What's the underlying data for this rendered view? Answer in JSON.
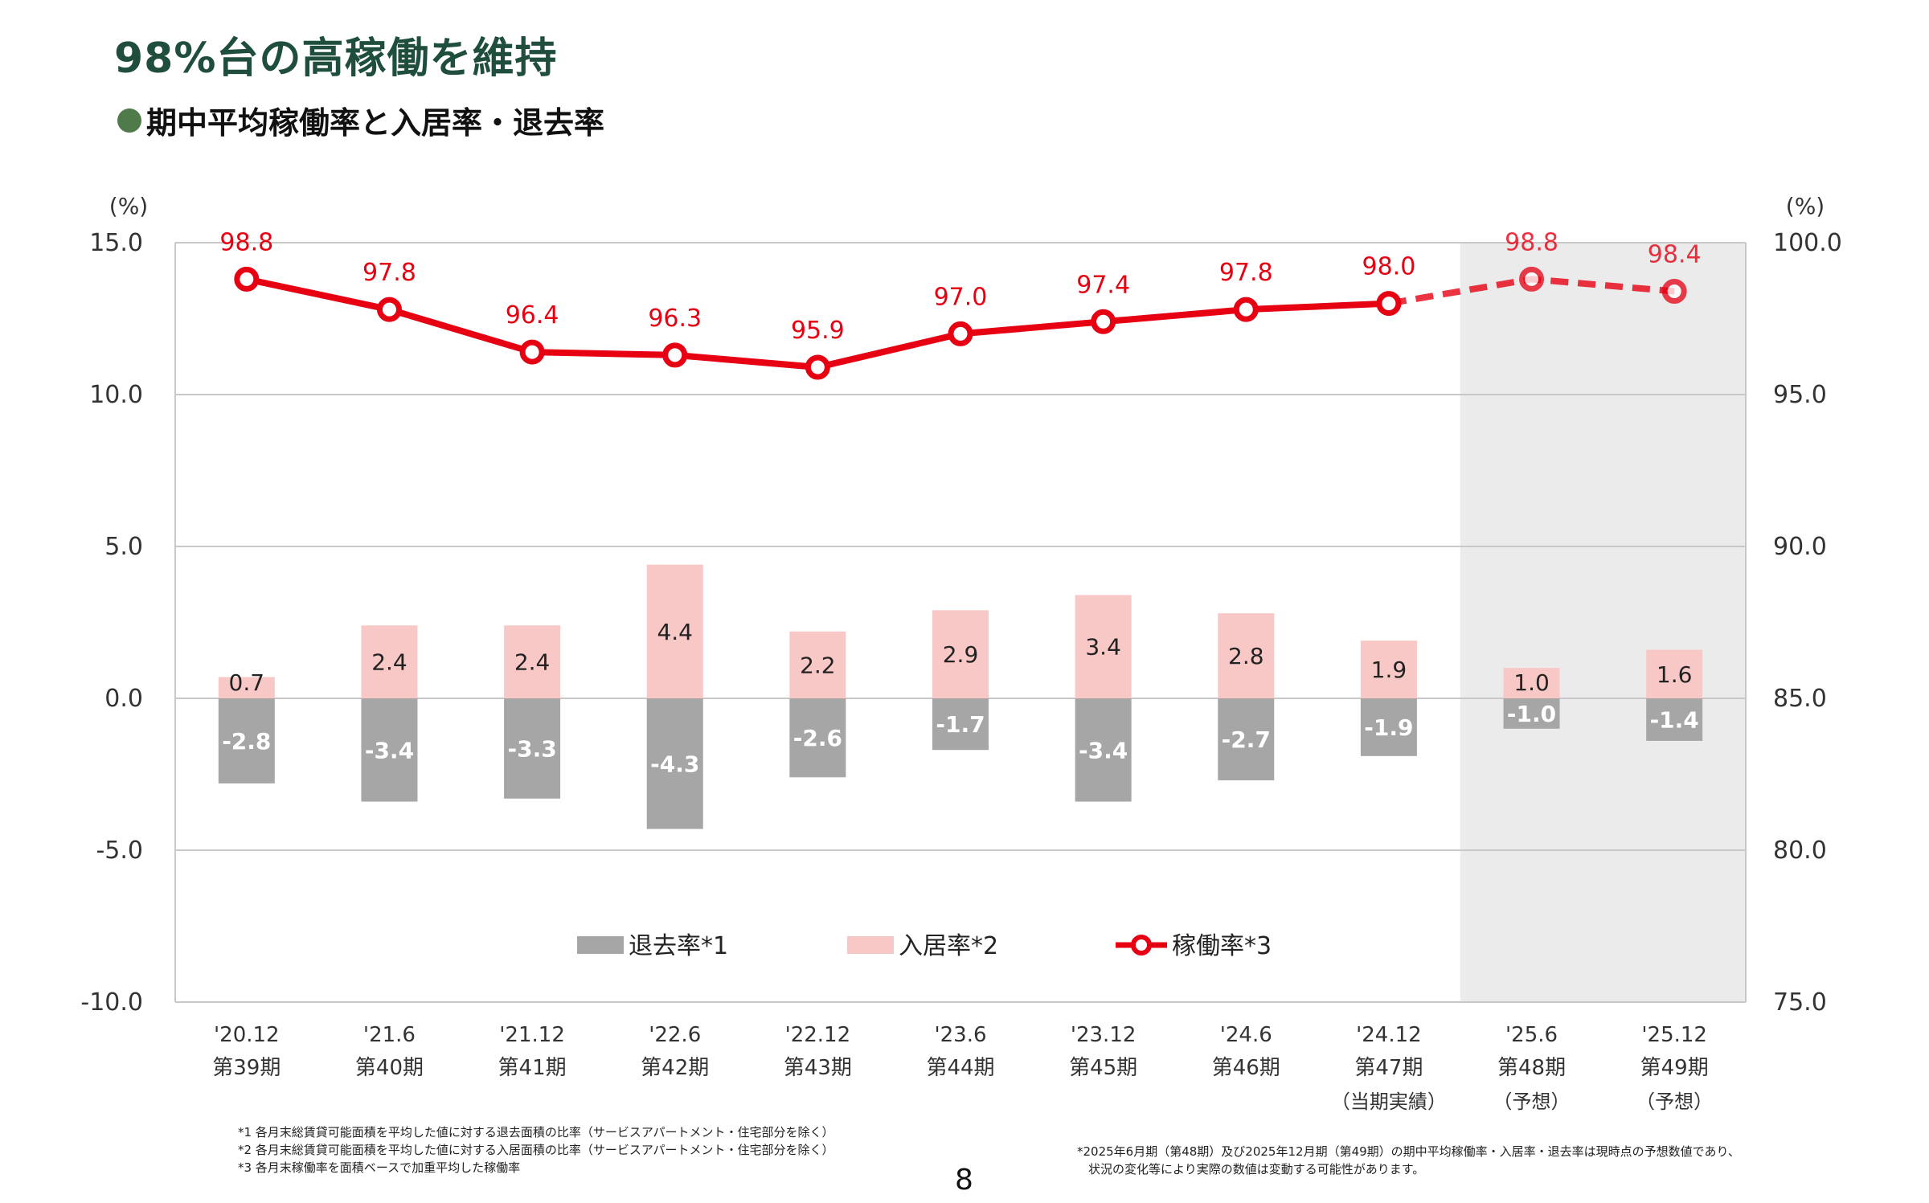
{
  "page": {
    "title": "98%台の高稼働を維持",
    "subtitle": "期中平均稼働率と入居率・退去率",
    "page_number": "8"
  },
  "footnotes_left": [
    "*1  各月末総賃貸可能面積を平均した値に対する退去面積の比率（サービスアパートメント・住宅部分を除く）",
    "*2  各月末総賃貸可能面積を平均した値に対する入居面積の比率（サービスアパートメント・住宅部分を除く）",
    "*3  各月末稼働率を面積ベースで加重平均した稼働率"
  ],
  "footnotes_right": [
    "*2025年6月期（第48期）及び2025年12月期（第49期）の期中平均稼働率・入居率・退去率は現時点の予想数値であり、",
    "状況の変化等により実際の数値は変動する可能性があります。"
  ],
  "colors": {
    "occupancy": "#e60012",
    "move_in": "#f8c8c6",
    "move_out": "#a6a6a6",
    "forecast_bg": "#ebebeb",
    "title": "#1f4e3d",
    "grid": "#c8c8c8"
  },
  "chart_data": {
    "type": "bar",
    "categories": [
      "'20.12",
      "'21.6",
      "'21.12",
      "'22.6",
      "'22.12",
      "'23.6",
      "'23.12",
      "'24.6",
      "'24.12",
      "'25.6",
      "'25.12"
    ],
    "category_periods": [
      "第39期",
      "第40期",
      "第41期",
      "第42期",
      "第43期",
      "第44期",
      "第45期",
      "第46期",
      "第47期",
      "第48期",
      "第49期"
    ],
    "category_notes": [
      "",
      "",
      "",
      "",
      "",
      "",
      "",
      "",
      "（当期実績）",
      "（予想）",
      "（予想）"
    ],
    "forecast_categories": [
      "'25.6",
      "'25.12"
    ],
    "y_left": {
      "unit": "(%)",
      "lim": [
        -10,
        15
      ],
      "ticks": [
        "15.0",
        "10.0",
        "5.0",
        "0.0",
        "-5.0",
        "-10.0"
      ]
    },
    "y_right": {
      "unit": "(%)",
      "lim": [
        75,
        100
      ],
      "ticks": [
        "100.0",
        "95.0",
        "90.0",
        "85.0",
        "80.0",
        "75.0"
      ]
    },
    "series": [
      {
        "name": "退去率*1",
        "type": "bar",
        "axis": "left",
        "values": [
          -2.8,
          -3.4,
          -3.3,
          -4.3,
          -2.6,
          -1.7,
          -3.4,
          -2.7,
          -1.9,
          -1.0,
          -1.4
        ],
        "labels": [
          "-2.8",
          "-3.4",
          "-3.3",
          "-4.3",
          "-2.6",
          "-1.7",
          "-3.4",
          "-2.7",
          "-1.9",
          "-1.0",
          "-1.4"
        ]
      },
      {
        "name": "入居率*2",
        "type": "bar",
        "axis": "left",
        "values": [
          0.7,
          2.4,
          2.4,
          4.4,
          2.2,
          2.9,
          3.4,
          2.8,
          1.9,
          1.0,
          1.6
        ],
        "labels": [
          "0.7",
          "2.4",
          "2.4",
          "4.4",
          "2.2",
          "2.9",
          "3.4",
          "2.8",
          "1.9",
          "1.0",
          "1.6"
        ]
      },
      {
        "name": "稼働率*3",
        "type": "line",
        "axis": "right",
        "values": [
          98.8,
          97.8,
          96.4,
          96.3,
          95.9,
          97.0,
          97.4,
          97.8,
          98.0,
          98.8,
          98.4
        ],
        "labels": [
          "98.8",
          "97.8",
          "96.4",
          "96.3",
          "95.9",
          "97.0",
          "97.4",
          "97.8",
          "98.0",
          "98.8",
          "98.4"
        ]
      }
    ],
    "legend_position": "bottom-center",
    "grid": true
  }
}
